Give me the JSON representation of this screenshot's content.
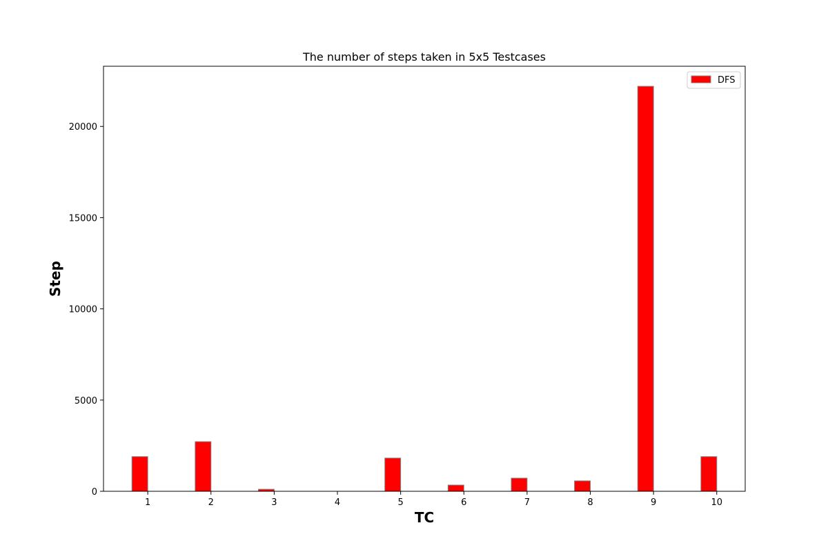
{
  "chart_data": {
    "type": "bar",
    "title": "The number of steps taken in 5x5 Testcases",
    "xlabel": "TC",
    "ylabel": "Step",
    "categories": [
      "1",
      "2",
      "3",
      "4",
      "5",
      "6",
      "7",
      "8",
      "9",
      "10"
    ],
    "series": [
      {
        "name": "DFS",
        "color": "#ff0000",
        "edge_color": "#808080",
        "values": [
          1900,
          2720,
          110,
          0,
          1820,
          340,
          720,
          570,
          22200,
          1900
        ]
      }
    ],
    "ylim": [
      0,
      23300
    ],
    "xlim": [
      0.3,
      10.45
    ],
    "yticks": [
      0,
      5000,
      10000,
      15000,
      20000
    ],
    "grid": false,
    "legend_position": "top-right"
  }
}
